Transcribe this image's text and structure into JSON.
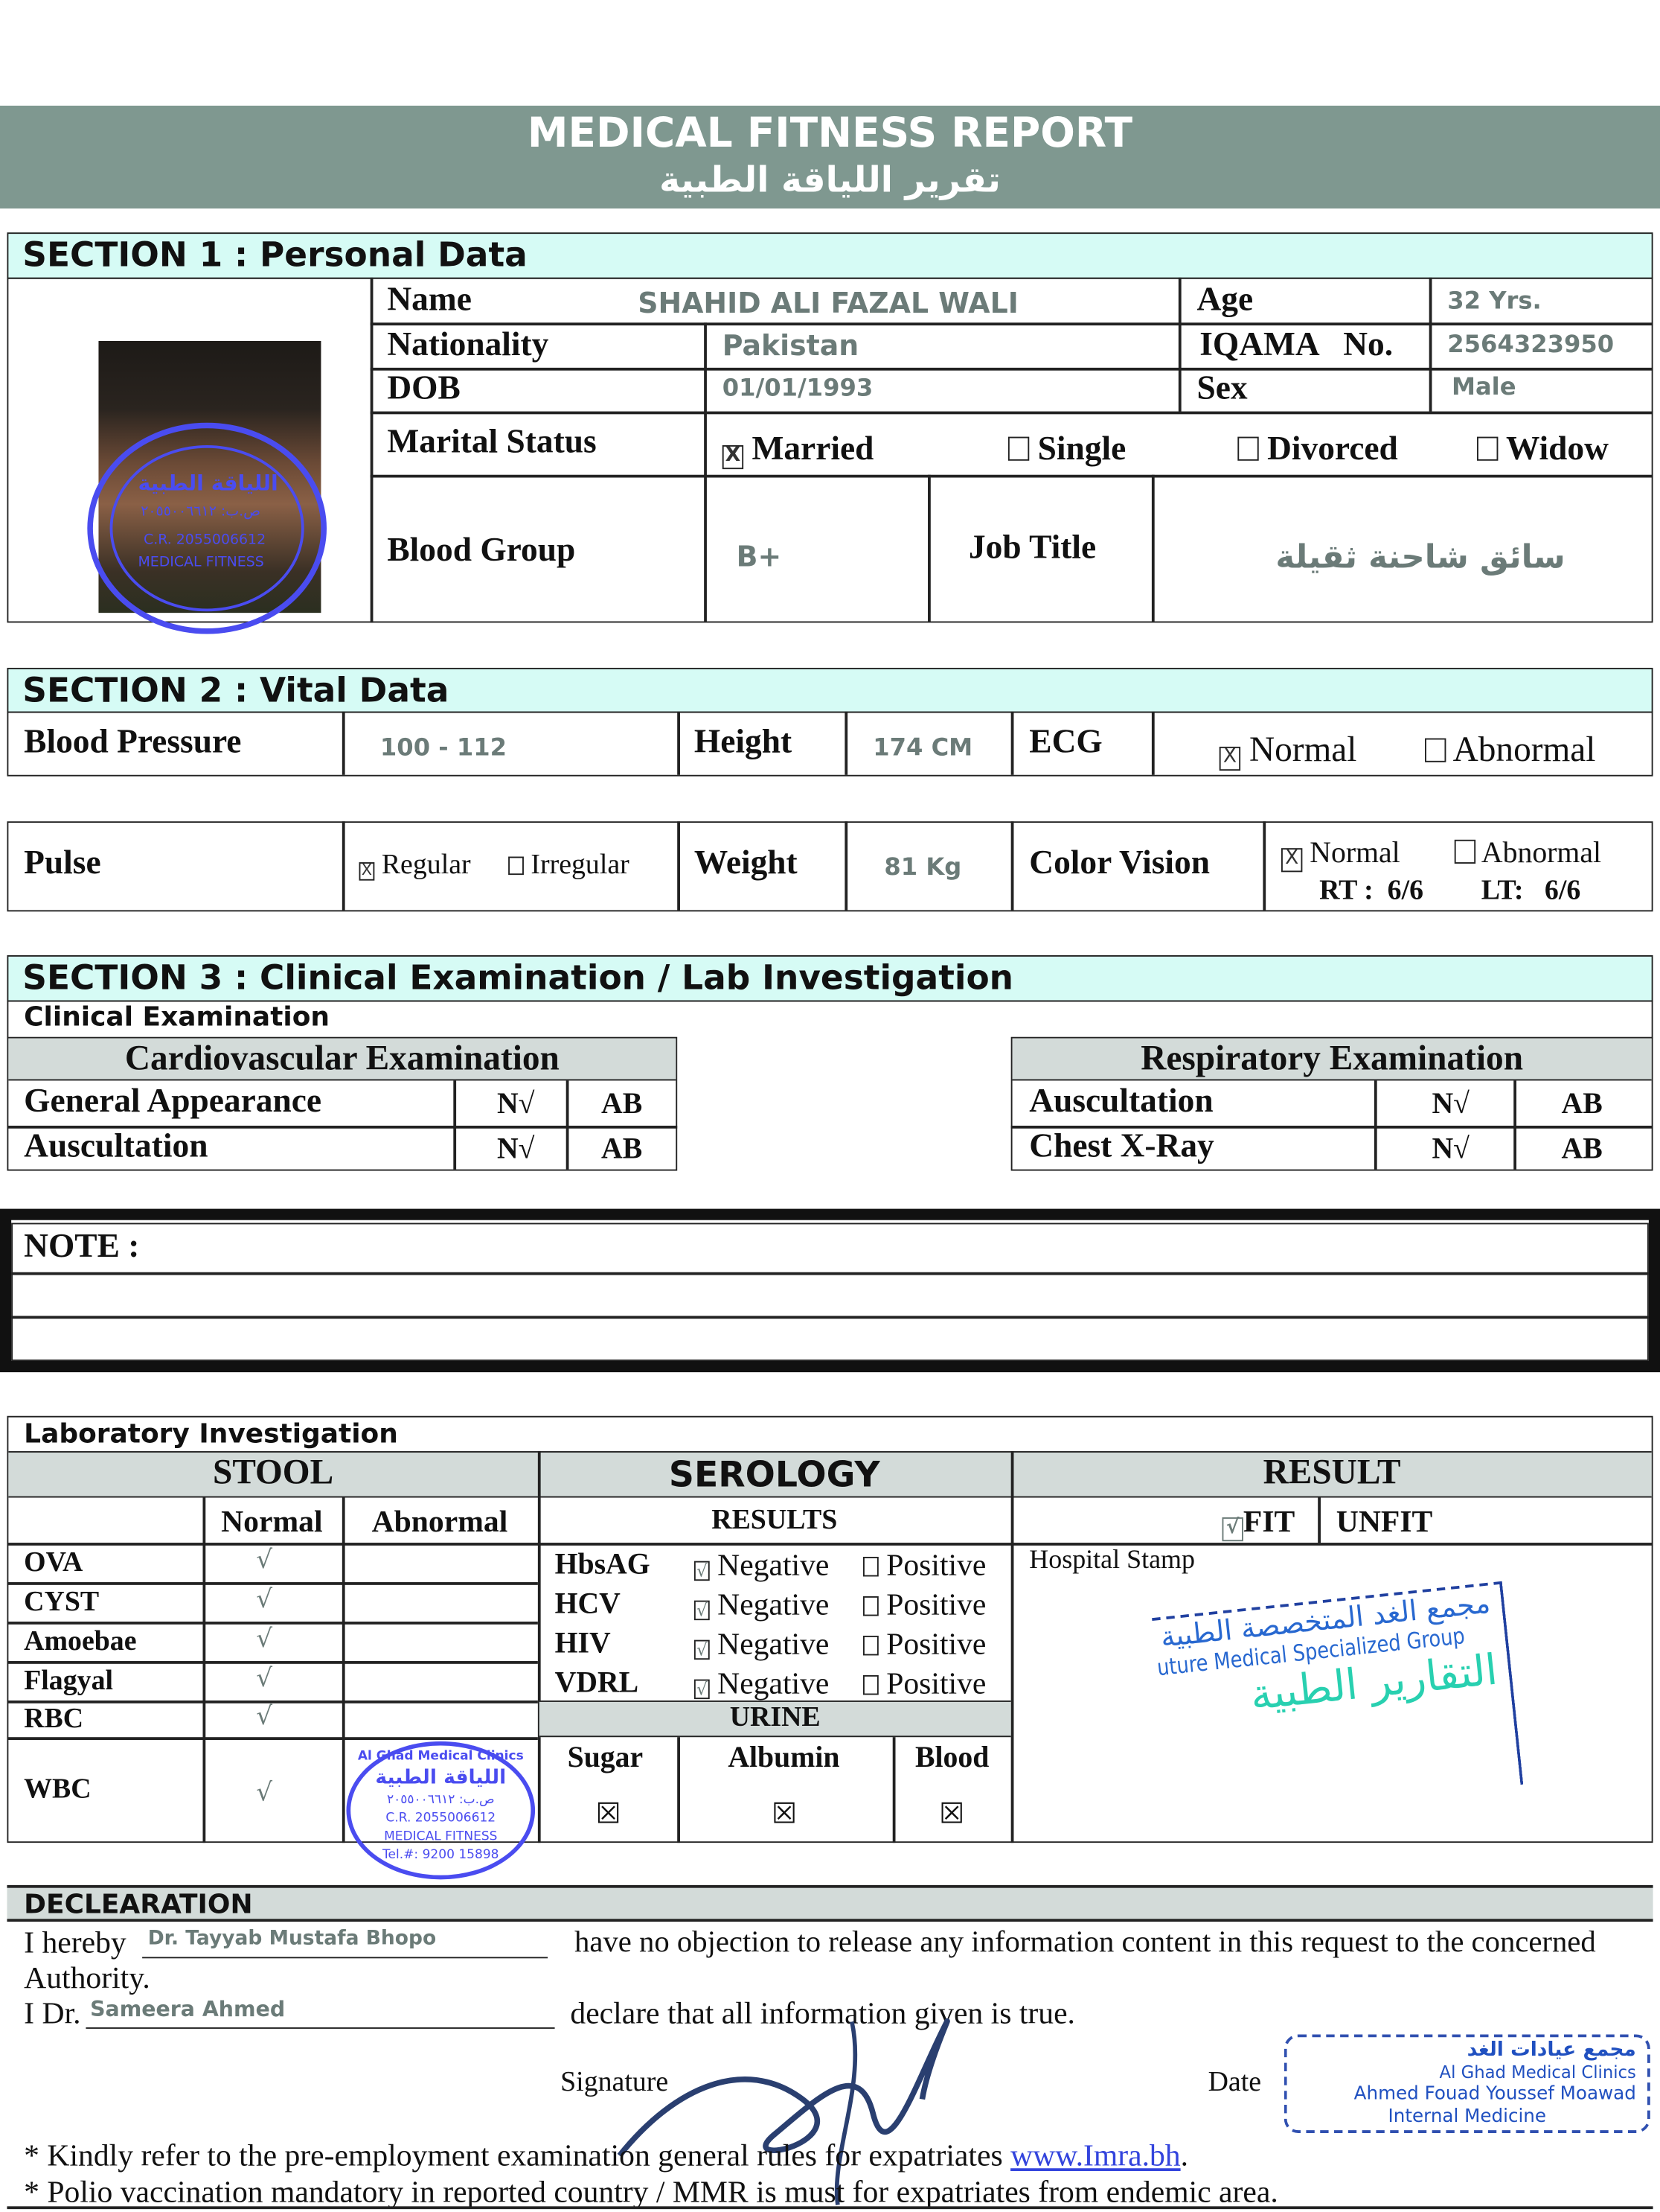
{
  "header": {
    "title": "MEDICAL FITNESS REPORT",
    "title_ar": "تقرير اللياقة الطبية",
    "bg_color": "#7f9890"
  },
  "section1": {
    "title": "SECTION 1 : Personal Data",
    "name_label": "Name",
    "name": "SHAHID ALI FAZAL WALI",
    "age_label": "Age",
    "age": "32 Yrs.",
    "nationality_label": "Nationality",
    "nationality": "Pakistan",
    "iqama_label": "IQAMA   No.",
    "iqama": "2564323950",
    "dob_label": "DOB",
    "dob": "01/01/1993",
    "sex_label": "Sex",
    "sex": "Male",
    "marital_label": "Marital Status",
    "marital_options": [
      {
        "label": "Married",
        "checked": true
      },
      {
        "label": "Single",
        "checked": false
      },
      {
        "label": "Divorced",
        "checked": false
      },
      {
        "label": "Widow",
        "checked": false
      }
    ],
    "blood_label": "Blood Group",
    "blood": "B+",
    "job_label": "Job Title",
    "job": "سائق شاحنة ثقيلة"
  },
  "section2": {
    "title": "SECTION 2 : Vital Data",
    "bp_label": "Blood Pressure",
    "bp": "100 - 112",
    "height_label": "Height",
    "height": "174 CM",
    "ecg_label": "ECG",
    "ecg_normal": "Normal",
    "ecg_abnormal": "Abnormal",
    "ecg_value": "Normal",
    "pulse_label": "Pulse",
    "pulse_regular": "Regular",
    "pulse_irregular": "Irregular",
    "pulse_value": "Regular",
    "weight_label": "Weight",
    "weight": "81 Kg",
    "cv_label": "Color Vision",
    "cv_normal": "Normal",
    "cv_abnormal": "Abnormal",
    "cv_value": "Normal",
    "rt_label": "RT :",
    "rt": "6/6",
    "lt_label": "LT:",
    "lt": "6/6"
  },
  "section3": {
    "title": "SECTION 3 : Clinical Examination / Lab Investigation",
    "sub": "Clinical Examination",
    "cardio": {
      "title": "Cardiovascular Examination",
      "rows": [
        {
          "label": "General Appearance",
          "n": "N√",
          "ab": "AB"
        },
        {
          "label": "Auscultation",
          "n": "N√",
          "ab": "AB"
        }
      ]
    },
    "resp": {
      "title": "Respiratory Examination",
      "rows": [
        {
          "label": "Auscultation",
          "n": "N√",
          "ab": "AB"
        },
        {
          "label": "Chest X-Ray",
          "n": "N√",
          "ab": "AB"
        }
      ]
    }
  },
  "note": {
    "label": "NOTE :"
  },
  "lab": {
    "title": "Laboratory Investigation",
    "stool": "STOOL",
    "serology": "SEROLOGY",
    "result": "RESULT",
    "normal": "Normal",
    "abnormal": "Abnormal",
    "results": "RESULTS",
    "fit": "FIT",
    "unfit": "UNFIT",
    "result_value": "FIT",
    "check": "√",
    "stool_rows": [
      "OVA",
      "CYST",
      "Amoebae",
      "Flagyal",
      "RBC",
      "WBC"
    ],
    "sero_rows": [
      {
        "label": "HbsAG",
        "neg": "Negative",
        "pos": "Positive",
        "value": "Negative"
      },
      {
        "label": "HCV",
        "neg": "Negative",
        "pos": "Positive",
        "value": "Negative"
      },
      {
        "label": "HIV",
        "neg": "Negative",
        "pos": "Positive",
        "value": "Negative"
      },
      {
        "label": "VDRL",
        "neg": "Negative",
        "pos": "Positive",
        "value": "Negative"
      }
    ],
    "urine": "URINE",
    "sugar": "Sugar",
    "albumin": "Albumin",
    "blood": "Blood",
    "hospital_stamp": "Hospital Stamp",
    "stamp2": {
      "ar": "مجمع الغد المتخصصة الطبية",
      "en": "uture Medical Specialized Group",
      "ar2": "التقارير الطبية"
    }
  },
  "declaration": {
    "title": "DECLEARATION",
    "hereby": "I hereby",
    "doctor1": "Dr. Tayyab Mustafa Bhopo",
    "text1": "have no objection to release any information content in this request to the concerned",
    "text1b": "Authority.",
    "idr": "I Dr.",
    "doctor2": "Sameera Ahmed",
    "text2": "declare that all information given is true.",
    "signature": "Signature",
    "date": "Date",
    "note1": "* Kindly refer to the pre-employment examination general rules for expatriates ",
    "link": "www.Imra.bh",
    "note1_end": ".",
    "note2": "* Polio vaccination mandatory in reported country  / MMR is must for expatriates from endemic area."
  },
  "stamp1": {
    "ar1": "مجمع عيادات الغد",
    "en": "Al Ghad Medical Clinics",
    "ar2": "اللياقة الطبية",
    "po": "ص.ب: ٢٠٥٥٠٠٦٦١٢",
    "cr": "C.R. 2055006612",
    "mf": "MEDICAL FITNESS",
    "tel": "Tel.#: 9200 15898"
  },
  "stamp3": {
    "ar": "مجمع عيادات الغد",
    "en": "Al Ghad Medical Clinics",
    "name": "Ahmed Fouad Youssef Moawad",
    "spec": "Internal Medicine"
  }
}
